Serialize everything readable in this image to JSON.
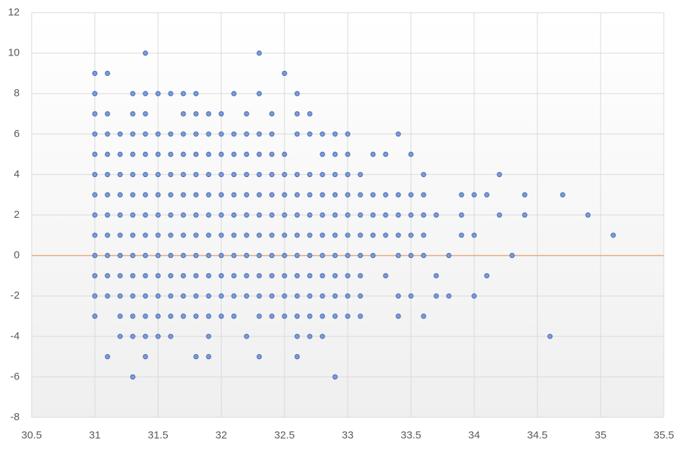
{
  "chart_data": {
    "type": "scatter",
    "color": "#7b9bd8",
    "edge_color": "#4a6cb0",
    "axis_color": "#e8a77c",
    "grid": true,
    "xlim": [
      30.5,
      35.5
    ],
    "xticks": [
      30.5,
      31,
      31.5,
      32,
      32.5,
      33,
      33.5,
      34,
      34.5,
      35,
      35.5
    ],
    "ylim": [
      -8,
      12
    ],
    "yticks": [
      -8,
      -6,
      -4,
      -2,
      0,
      2,
      4,
      6,
      8,
      10,
      12
    ],
    "x": [
      31,
      31,
      31,
      31,
      31,
      31,
      31,
      31,
      31,
      31,
      31,
      31,
      31,
      31.1,
      31.1,
      31.1,
      31.1,
      31.1,
      31.1,
      31.1,
      31.1,
      31.1,
      31.1,
      31.1,
      31.1,
      31.2,
      31.2,
      31.2,
      31.2,
      31.2,
      31.2,
      31.2,
      31.2,
      31.2,
      31.2,
      31.2,
      31.3,
      31.3,
      31.3,
      31.3,
      31.3,
      31.3,
      31.3,
      31.3,
      31.3,
      31.3,
      31.3,
      31.3,
      31.3,
      31.3,
      31.4,
      31.4,
      31.4,
      31.4,
      31.4,
      31.4,
      31.4,
      31.4,
      31.4,
      31.4,
      31.4,
      31.4,
      31.4,
      31.4,
      31.4,
      31.5,
      31.5,
      31.5,
      31.5,
      31.5,
      31.5,
      31.5,
      31.5,
      31.5,
      31.5,
      31.5,
      31.5,
      31.6,
      31.6,
      31.6,
      31.6,
      31.6,
      31.6,
      31.6,
      31.6,
      31.6,
      31.6,
      31.6,
      31.6,
      31.7,
      31.7,
      31.7,
      31.7,
      31.7,
      31.7,
      31.7,
      31.7,
      31.7,
      31.7,
      31.7,
      31.7,
      31.8,
      31.8,
      31.8,
      31.8,
      31.8,
      31.8,
      31.8,
      31.8,
      31.8,
      31.8,
      31.8,
      31.8,
      31.8,
      31.9,
      31.9,
      31.9,
      31.9,
      31.9,
      31.9,
      31.9,
      31.9,
      31.9,
      31.9,
      31.9,
      31.9,
      31.9,
      32,
      32,
      32,
      32,
      32,
      32,
      32,
      32,
      32,
      32,
      32,
      32.1,
      32.1,
      32.1,
      32.1,
      32.1,
      32.1,
      32.1,
      32.1,
      32.1,
      32.1,
      32.1,
      32.2,
      32.2,
      32.2,
      32.2,
      32.2,
      32.2,
      32.2,
      32.2,
      32.2,
      32.2,
      32.2,
      32.3,
      32.3,
      32.3,
      32.3,
      32.3,
      32.3,
      32.3,
      32.3,
      32.3,
      32.3,
      32.3,
      32.3,
      32.3,
      32.4,
      32.4,
      32.4,
      32.4,
      32.4,
      32.4,
      32.4,
      32.4,
      32.4,
      32.4,
      32.4,
      32.5,
      32.5,
      32.5,
      32.5,
      32.5,
      32.5,
      32.5,
      32.5,
      32.5,
      32.5,
      32.6,
      32.6,
      32.6,
      32.6,
      32.6,
      32.6,
      32.6,
      32.6,
      32.6,
      32.6,
      32.6,
      32.6,
      32.6,
      32.7,
      32.7,
      32.7,
      32.7,
      32.7,
      32.7,
      32.7,
      32.7,
      32.7,
      32.7,
      32.7,
      32.8,
      32.8,
      32.8,
      32.8,
      32.8,
      32.8,
      32.8,
      32.8,
      32.8,
      32.8,
      32.8,
      32.9,
      32.9,
      32.9,
      32.9,
      32.9,
      32.9,
      32.9,
      32.9,
      32.9,
      32.9,
      32.9,
      33,
      33,
      33,
      33,
      33,
      33,
      33,
      33,
      33,
      33,
      33.1,
      33.1,
      33.1,
      33.1,
      33.1,
      33.1,
      33.1,
      33.1,
      33.2,
      33.2,
      33.2,
      33.2,
      33.2,
      33.3,
      33.3,
      33.3,
      33.3,
      33.3,
      33.4,
      33.4,
      33.4,
      33.4,
      33.4,
      33.4,
      33.4,
      33.5,
      33.5,
      33.5,
      33.5,
      33.5,
      33.5,
      33.6,
      33.6,
      33.6,
      33.6,
      33.6,
      33.6,
      33.7,
      33.7,
      33.7,
      33.8,
      33.8,
      33.9,
      33.9,
      33.9,
      34,
      34,
      34,
      34.1,
      34.1,
      34.2,
      34.2,
      34.3,
      34.4,
      34.4,
      34.6,
      34.7,
      34.9,
      35.1
    ],
    "values": [
      9,
      8,
      7,
      6,
      5,
      4,
      3,
      2,
      1,
      0,
      -1,
      -2,
      -3,
      9,
      7,
      6,
      5,
      4,
      3,
      2,
      1,
      0,
      -1,
      -2,
      -5,
      6,
      5,
      4,
      3,
      2,
      1,
      0,
      -1,
      -2,
      -3,
      -4,
      8,
      7,
      6,
      5,
      4,
      3,
      2,
      1,
      0,
      -1,
      -2,
      -3,
      -4,
      -6,
      10,
      8,
      7,
      6,
      5,
      4,
      3,
      2,
      1,
      0,
      -1,
      -2,
      -3,
      -4,
      -5,
      8,
      6,
      5,
      4,
      3,
      2,
      1,
      0,
      -1,
      -2,
      -3,
      -4,
      8,
      6,
      5,
      4,
      3,
      2,
      1,
      0,
      -1,
      -2,
      -3,
      -4,
      8,
      7,
      6,
      5,
      4,
      3,
      2,
      1,
      0,
      -1,
      -2,
      -3,
      8,
      7,
      6,
      5,
      4,
      3,
      2,
      1,
      0,
      -1,
      -2,
      -3,
      -5,
      7,
      6,
      5,
      4,
      3,
      2,
      1,
      0,
      -1,
      -2,
      -3,
      -4,
      -5,
      7,
      6,
      5,
      4,
      3,
      2,
      1,
      0,
      -1,
      -2,
      -3,
      8,
      6,
      5,
      4,
      3,
      2,
      1,
      0,
      -1,
      -2,
      -3,
      7,
      6,
      5,
      4,
      3,
      2,
      1,
      0,
      -1,
      -2,
      -4,
      10,
      8,
      6,
      5,
      4,
      3,
      2,
      1,
      0,
      -1,
      -2,
      -3,
      -5,
      7,
      6,
      5,
      4,
      3,
      2,
      1,
      0,
      -1,
      -2,
      -3,
      9,
      5,
      4,
      3,
      2,
      1,
      0,
      -1,
      -2,
      -3,
      8,
      7,
      6,
      4,
      3,
      2,
      1,
      0,
      -1,
      -2,
      -3,
      -4,
      -5,
      7,
      6,
      4,
      3,
      2,
      1,
      0,
      -1,
      -2,
      -3,
      -4,
      6,
      5,
      4,
      3,
      2,
      1,
      0,
      -1,
      -2,
      -3,
      -4,
      6,
      5,
      4,
      3,
      2,
      1,
      0,
      -1,
      -2,
      -3,
      -6,
      6,
      5,
      4,
      3,
      2,
      1,
      0,
      -1,
      -2,
      -3,
      4,
      3,
      2,
      1,
      0,
      -1,
      -2,
      -3,
      5,
      3,
      2,
      1,
      0,
      5,
      3,
      2,
      1,
      -1,
      6,
      3,
      2,
      1,
      0,
      -2,
      -3,
      5,
      3,
      2,
      1,
      0,
      -2,
      4,
      3,
      2,
      1,
      0,
      -3,
      2,
      -1,
      -2,
      0,
      -2,
      3,
      2,
      1,
      3,
      1,
      -2,
      3,
      -1,
      4,
      2,
      0,
      3,
      2,
      -4,
      3,
      2,
      1
    ]
  }
}
